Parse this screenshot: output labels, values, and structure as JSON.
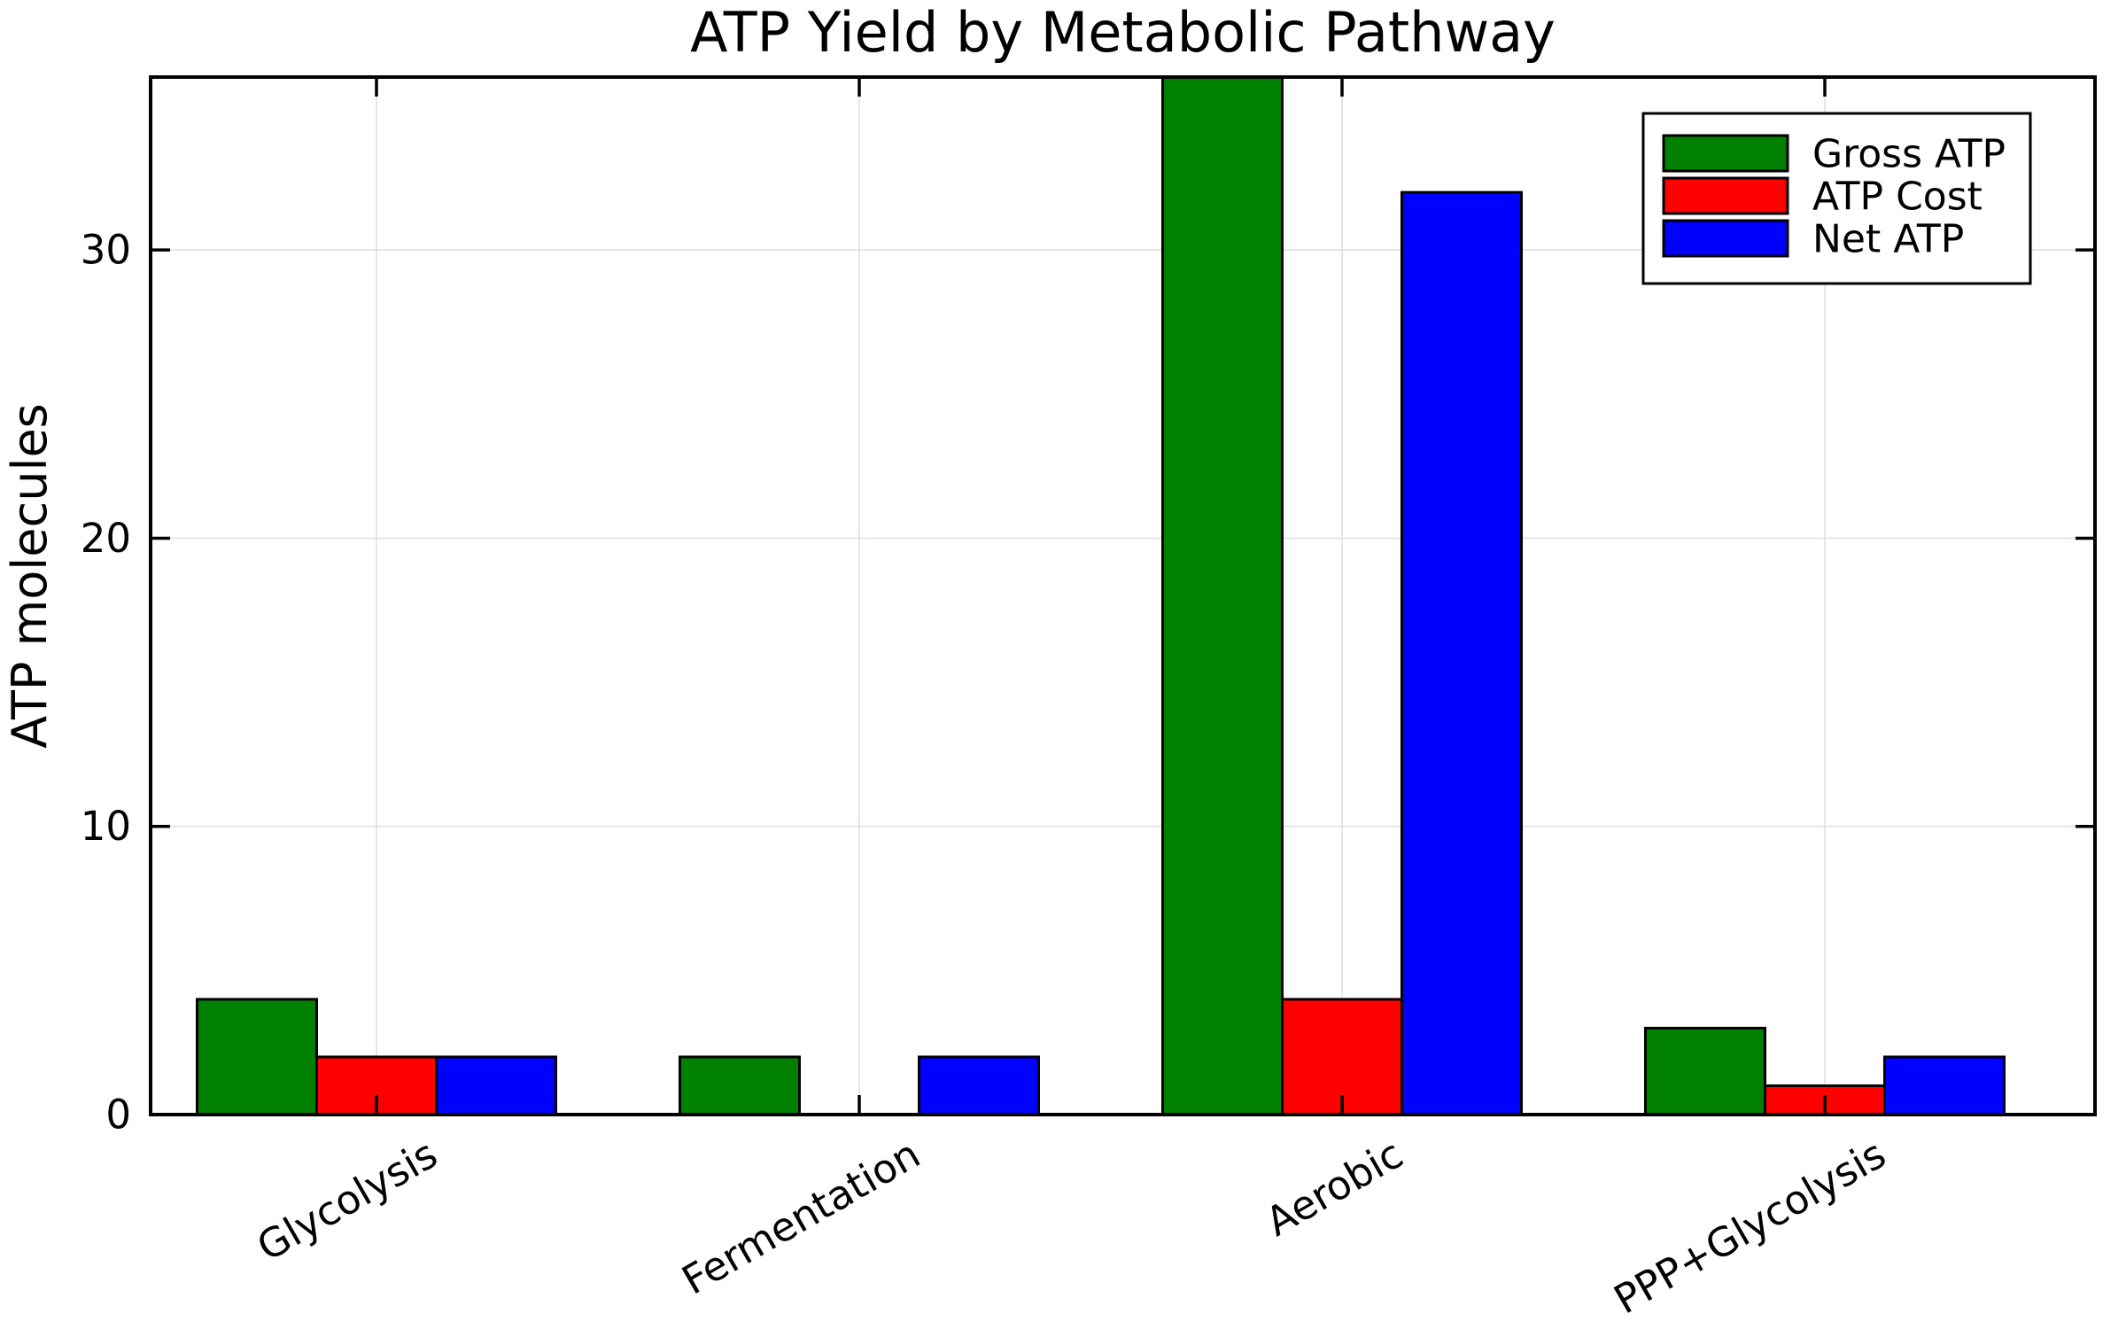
{
  "figure": {
    "title": "ATP Yield by Metabolic Pathway",
    "ylabel": "ATP molecules"
  },
  "chart_data": {
    "type": "bar",
    "title": "ATP Yield by Metabolic Pathway",
    "xlabel": "",
    "ylabel": "ATP molecules",
    "categories": [
      "Glycolysis",
      "Fermentation",
      "Aerobic",
      "PPP+Glycolysis"
    ],
    "series": [
      {
        "name": "Gross ATP",
        "color": "#008000",
        "values": [
          4,
          2,
          36,
          3
        ]
      },
      {
        "name": "ATP Cost",
        "color": "#ff0000",
        "values": [
          2,
          0,
          4,
          1
        ]
      },
      {
        "name": "Net ATP",
        "color": "#0000ff",
        "values": [
          2,
          2,
          32,
          2
        ]
      }
    ],
    "ylim": [
      0,
      36
    ],
    "yticks": [
      0,
      10,
      20,
      30
    ],
    "grid": true,
    "legend": {
      "position": "top-right",
      "entries": [
        "Gross ATP",
        "ATP Cost",
        "Net ATP"
      ]
    },
    "style": {
      "bar_edge_color": "#000000",
      "grid_color": "#e0e0e0",
      "frame_color": "#000000",
      "text_color": "#000000",
      "background": "#ffffff"
    }
  }
}
